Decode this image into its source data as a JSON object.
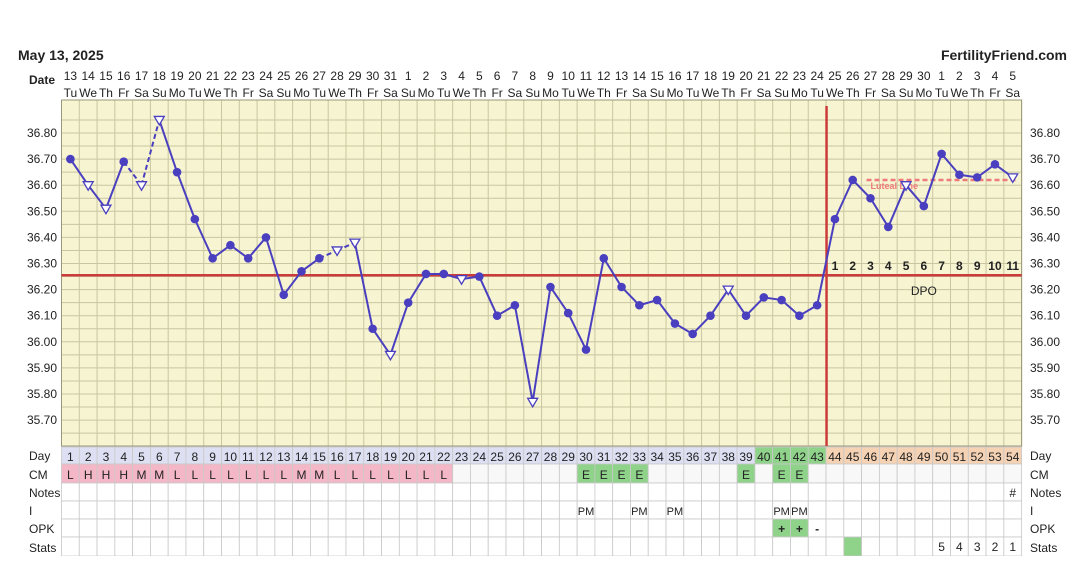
{
  "header": {
    "date": "May 13, 2025",
    "brand": "FertilityFriend.com"
  },
  "labels": {
    "date": "Date",
    "day": "Day",
    "cm": "CM",
    "notes": "Notes",
    "i": "I",
    "opk": "OPK",
    "stats": "Stats",
    "dpo": "DPO",
    "luteal": "Luteal Line"
  },
  "colors": {
    "background": "#f7f4d2",
    "grid": "#c9c6a0",
    "line": "#4a3fbf",
    "coverline": "#cc3b3b",
    "ovulation_line": "#cc3b3b",
    "luteal_line": "#ef7c7c",
    "cm_pink": "#f4b7c8",
    "cm_green": "#8fd28a",
    "stats_green": "#8fd28a",
    "post_ov_header": "#f5d2b4",
    "row_header": "#dde0f2"
  },
  "chart_data": {
    "type": "line",
    "title": "",
    "ylim": [
      35.63,
      36.87
    ],
    "yticks": [
      "36.80",
      "36.70",
      "36.60",
      "36.50",
      "36.40",
      "36.30",
      "36.20",
      "36.10",
      "36.00",
      "35.90",
      "35.80",
      "35.70"
    ],
    "cycle_days": [
      1,
      2,
      3,
      4,
      5,
      6,
      7,
      8,
      9,
      10,
      11,
      12,
      13,
      14,
      15,
      16,
      17,
      18,
      19,
      20,
      21,
      22,
      23,
      24,
      25,
      26,
      27,
      28,
      29,
      30,
      31,
      32,
      33,
      34,
      35,
      36,
      37,
      38,
      39,
      40,
      41,
      42,
      43,
      44,
      45,
      46,
      47,
      48,
      49,
      50,
      51,
      52,
      53,
      54
    ],
    "dates": [
      "13",
      "14",
      "15",
      "16",
      "17",
      "18",
      "19",
      "20",
      "21",
      "22",
      "23",
      "24",
      "25",
      "26",
      "27",
      "28",
      "29",
      "30",
      "31",
      "1",
      "2",
      "3",
      "4",
      "5",
      "6",
      "7",
      "8",
      "9",
      "10",
      "11",
      "12",
      "13",
      "14",
      "15",
      "16",
      "17",
      "18",
      "19",
      "20",
      "21",
      "22",
      "23",
      "24",
      "25",
      "26",
      "27",
      "28",
      "29",
      "30",
      "1",
      "2",
      "3",
      "4",
      "5"
    ],
    "weekdays": [
      "Tu",
      "We",
      "Th",
      "Fr",
      "Sa",
      "Su",
      "Mo",
      "Tu",
      "We",
      "Th",
      "Fr",
      "Sa",
      "Su",
      "Mo",
      "Tu",
      "We",
      "Th",
      "Fr",
      "Sa",
      "Su",
      "Mo",
      "Tu",
      "We",
      "Th",
      "Fr",
      "Sa",
      "Su",
      "Mo",
      "Tu",
      "We",
      "Th",
      "Fr",
      "Sa",
      "Su",
      "Mo",
      "Tu",
      "We",
      "Th",
      "Fr",
      "Sa",
      "Su",
      "Mo",
      "Tu",
      "We",
      "Th",
      "Fr",
      "Sa",
      "Su",
      "Mo",
      "Tu",
      "We",
      "Th",
      "Fr",
      "Sa"
    ],
    "temps": [
      36.7,
      36.6,
      36.51,
      36.69,
      36.6,
      36.85,
      36.65,
      36.47,
      36.32,
      36.37,
      36.32,
      36.4,
      36.18,
      36.27,
      36.32,
      36.35,
      36.38,
      36.05,
      35.95,
      36.15,
      36.26,
      36.26,
      36.24,
      36.25,
      36.1,
      36.14,
      35.77,
      36.21,
      36.11,
      35.97,
      36.32,
      36.21,
      36.14,
      36.16,
      36.07,
      36.03,
      36.1,
      36.2,
      36.1,
      36.17,
      36.16,
      36.1,
      36.14,
      36.47,
      36.62,
      36.55,
      36.44,
      36.6,
      36.52,
      36.72,
      36.64,
      36.63,
      36.68,
      36.63
    ],
    "open_points": [
      2,
      3,
      5,
      6,
      16,
      17,
      19,
      23,
      27,
      38,
      48,
      54
    ],
    "dashed_segments": [
      [
        4,
        6
      ],
      [
        15,
        17
      ]
    ],
    "coverline": 36.255,
    "ovulation_day": 43,
    "luteal_line": {
      "value": 36.62,
      "from_day": 46,
      "to_day": 54
    },
    "dpo": [
      "1",
      "2",
      "3",
      "4",
      "5",
      "6",
      "7",
      "8",
      "9",
      "10",
      "11"
    ],
    "cm": [
      "L",
      "H",
      "H",
      "H",
      "M",
      "M",
      "L",
      "L",
      "L",
      "L",
      "L",
      "L",
      "L",
      "M",
      "M",
      "L",
      "L",
      "L",
      "L",
      "L",
      "L",
      "L",
      "",
      "",
      "",
      "",
      "",
      "",
      "",
      "E",
      "E",
      "E",
      "E",
      "",
      "",
      "",
      "",
      "",
      "E",
      "",
      "E",
      "E",
      "",
      "",
      "",
      "",
      "",
      "",
      "",
      "",
      "",
      "",
      "",
      ""
    ],
    "notes_flag_day": 54,
    "notes_flag": "#",
    "intercourse": {
      "30": "PM",
      "33": "PM",
      "35": "PM",
      "41": "PM",
      "42": "PM"
    },
    "opk": {
      "41": "+",
      "42": "+",
      "43": "-"
    },
    "stats": {
      "45": "",
      "50": "5",
      "51": "4",
      "52": "3",
      "53": "2",
      "54": "1"
    }
  }
}
